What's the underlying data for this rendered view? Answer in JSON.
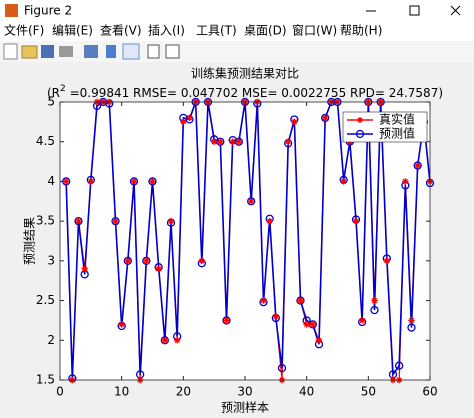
{
  "window": {
    "title": "Figure 2",
    "menu": [
      "文件(F)",
      "编辑(E)",
      "查看(V)",
      "插入(I)",
      "工具(T)",
      "桌面(D)",
      "窗口(W)",
      "帮助(H)"
    ]
  },
  "chart_data": {
    "type": "line",
    "title": "训练集预测结果对比",
    "subtitle_prefix": "(R",
    "subtitle_superscript": "2",
    "subtitle_rest": " =0.99841 RMSE= 0.047702 MSE= 0.0022755 RPD= 24.7587)",
    "xlabel": "预测样本",
    "ylabel": "预测结果",
    "x": [
      1,
      2,
      3,
      4,
      5,
      6,
      7,
      8,
      9,
      10,
      11,
      12,
      13,
      14,
      15,
      16,
      17,
      18,
      19,
      20,
      21,
      22,
      23,
      24,
      25,
      26,
      27,
      28,
      29,
      30,
      31,
      32,
      33,
      34,
      35,
      36,
      37,
      38,
      39,
      40,
      41,
      42,
      43,
      44,
      45,
      46,
      47,
      48,
      49,
      50,
      51,
      52,
      53,
      54,
      55,
      56,
      57,
      58,
      59,
      60
    ],
    "series": [
      {
        "name": "真实值",
        "color": "#ff0000",
        "marker": "star",
        "values": [
          4,
          1.5,
          3.5,
          2.9,
          4,
          5,
          5,
          5,
          3.5,
          2.2,
          3,
          4,
          1.5,
          3,
          4,
          2.9,
          2,
          3.5,
          2,
          4.75,
          4.8,
          5,
          3,
          5,
          4.5,
          4.5,
          2.25,
          4.5,
          4.5,
          5,
          3.75,
          5,
          2.5,
          3.5,
          2.3,
          1.5,
          4.5,
          4.75,
          2.5,
          2.2,
          2.2,
          2,
          4.8,
          5,
          5,
          4,
          4.5,
          3.5,
          2.25,
          5,
          2.5,
          5,
          3,
          1.5,
          1.5,
          4,
          2.25,
          4.2,
          4.75,
          4
        ]
      },
      {
        "name": "预测值",
        "color": "#0000cc",
        "marker": "circle",
        "values": [
          4,
          1.52,
          3.5,
          2.83,
          4.02,
          4.95,
          5,
          4.98,
          3.5,
          2.18,
          3,
          4,
          1.57,
          3,
          4,
          2.92,
          2,
          3.48,
          2.05,
          4.8,
          4.78,
          5,
          2.97,
          5,
          4.53,
          4.5,
          2.25,
          4.52,
          4.5,
          5,
          3.75,
          4.98,
          2.48,
          3.53,
          2.28,
          1.65,
          4.48,
          4.78,
          2.5,
          2.25,
          2.2,
          1.95,
          4.8,
          5,
          5,
          4.02,
          4.5,
          3.52,
          2.23,
          5,
          2.38,
          5,
          3.03,
          1.57,
          1.68,
          3.95,
          2.16,
          4.2,
          4.75,
          3.98
        ]
      }
    ],
    "xlim": [
      0,
      60
    ],
    "ylim": [
      1.5,
      5
    ],
    "xticks": [
      0,
      10,
      20,
      30,
      40,
      50,
      60
    ],
    "yticks": [
      1.5,
      2,
      2.5,
      3,
      3.5,
      4,
      4.5,
      5
    ],
    "legend": "upper right"
  }
}
